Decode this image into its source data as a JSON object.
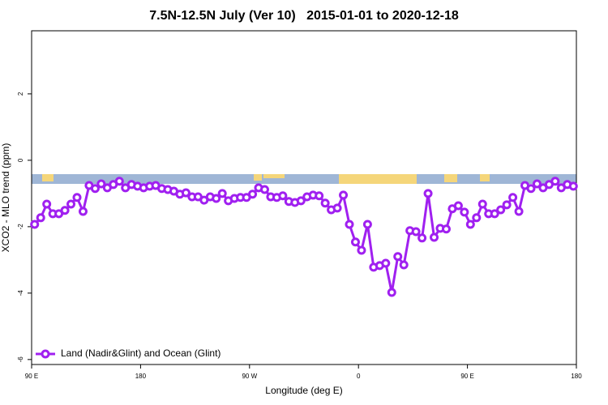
{
  "chart_data": {
    "type": "line",
    "title": "7.5N-12.5N July (Ver 10)   2015-01-01 to 2020-12-18",
    "x_label": "Longitude (deg E)",
    "y_label": "XCO2 - MLO trend (ppm)",
    "x": [
      92.5,
      97.5,
      102.5,
      107.5,
      112.5,
      117.5,
      122.5,
      127.5,
      132.5,
      137.5,
      142.5,
      147.5,
      152.5,
      157.5,
      162.5,
      167.5,
      172.5,
      177.5,
      182.5,
      187.5,
      192.5,
      197.5,
      202.5,
      207.5,
      212.5,
      217.5,
      222.5,
      227.5,
      232.5,
      237.5,
      242.5,
      247.5,
      252.5,
      257.5,
      262.5,
      267.5,
      272.5,
      277.5,
      282.5,
      287.5,
      292.5,
      297.5,
      302.5,
      307.5,
      312.5,
      317.5,
      322.5,
      327.5,
      332.5,
      337.5,
      342.5,
      347.5,
      352.5,
      357.5,
      362.5,
      367.5,
      372.5,
      377.5,
      382.5,
      387.5,
      392.5,
      397.5,
      402.5,
      407.5,
      412.5,
      417.5,
      422.5,
      427.5,
      432.5,
      437.5,
      442.5,
      447.5,
      452.5,
      457.5,
      462.5,
      467.5,
      472.5,
      477.5,
      482.5,
      487.5,
      492.5,
      497.5,
      502.5,
      507.5,
      512.5,
      517.5,
      522.5,
      527.5,
      532.5,
      537.5
    ],
    "series": [
      {
        "name": "Land (Nadir&Glint) and Ocean (Glint)",
        "color": "#a020f0",
        "values": [
          -1.93,
          -1.73,
          -1.32,
          -1.61,
          -1.61,
          -1.51,
          -1.32,
          -1.12,
          -1.54,
          -0.76,
          -0.85,
          -0.71,
          -0.83,
          -0.73,
          -0.63,
          -0.83,
          -0.73,
          -0.78,
          -0.83,
          -0.78,
          -0.76,
          -0.85,
          -0.88,
          -0.93,
          -1.02,
          -0.98,
          -1.1,
          -1.1,
          -1.2,
          -1.1,
          -1.15,
          -1.0,
          -1.22,
          -1.15,
          -1.12,
          -1.12,
          -1.02,
          -0.83,
          -0.88,
          -1.1,
          -1.12,
          -1.07,
          -1.24,
          -1.27,
          -1.22,
          -1.1,
          -1.05,
          -1.07,
          -1.29,
          -1.49,
          -1.44,
          -1.05,
          -1.93,
          -2.46,
          -2.71,
          -1.93,
          -3.22,
          -3.17,
          -3.1,
          -3.98,
          -2.9,
          -3.15,
          -2.12,
          -2.15,
          -2.34,
          -1.0,
          -2.32,
          -2.05,
          -2.07,
          -1.46,
          -1.37,
          -1.56,
          -1.93,
          -1.73,
          -1.32,
          -1.61,
          -1.61,
          -1.49,
          -1.34,
          -1.12,
          -1.54,
          -0.76,
          -0.85,
          -0.71,
          -0.83,
          -0.73,
          -0.63,
          -0.83,
          -0.73,
          -0.78
        ]
      }
    ],
    "xlim": [
      90,
      540
    ],
    "xticks": [
      {
        "value": 90,
        "label": "90 E"
      },
      {
        "value": 180,
        "label": "180"
      },
      {
        "value": 270,
        "label": "90 W"
      },
      {
        "value": 360,
        "label": "0"
      },
      {
        "value": 450,
        "label": "90 E"
      },
      {
        "value": 540,
        "label": "180"
      }
    ],
    "ylim": [
      -6.15,
      3.9
    ],
    "yticks": [
      -6,
      -4,
      -2,
      0,
      2
    ],
    "legend": "bottom-left"
  }
}
